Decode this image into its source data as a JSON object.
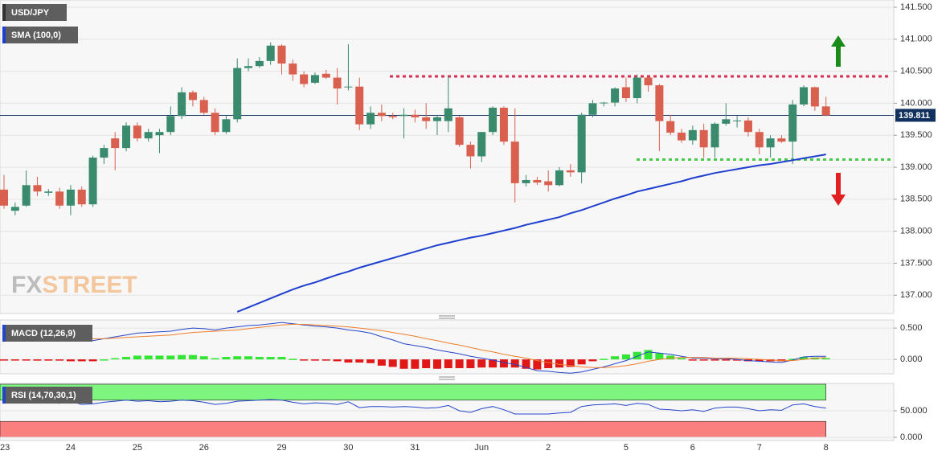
{
  "chart_data": [
    {
      "type": "candlestick",
      "title": "USD/JPY",
      "categories": [
        "23",
        null,
        null,
        null,
        null,
        null,
        "24",
        null,
        null,
        null,
        null,
        null,
        "25",
        null,
        null,
        null,
        null,
        null,
        "26",
        null,
        null,
        null,
        null,
        null,
        null,
        "29",
        null,
        null,
        null,
        null,
        null,
        "30",
        null,
        null,
        null,
        null,
        null,
        "31",
        null,
        null,
        null,
        null,
        null,
        "Jun",
        null,
        null,
        null,
        null,
        null,
        "2",
        null,
        null,
        null,
        null,
        null,
        null,
        "5",
        null,
        null,
        null,
        null,
        null,
        "6",
        null,
        null,
        null,
        null,
        null,
        "7",
        null,
        null,
        null,
        null,
        null,
        "8"
      ],
      "open": [
        138.65,
        138.32,
        138.4,
        138.72,
        138.6,
        138.62,
        138.4,
        138.65,
        138.42,
        139.15,
        139.45,
        139.3,
        139.65,
        139.45,
        139.5,
        139.55,
        139.8,
        140.17,
        140.05,
        139.85,
        139.55,
        139.75,
        140.55,
        140.58,
        140.66,
        140.9,
        140.62,
        140.45,
        140.32,
        140.46,
        140.4,
        140.25,
        140.26,
        139.67,
        139.85,
        139.8,
        139.8,
        139.82,
        139.78,
        139.72,
        139.72,
        139.78,
        139.35,
        139.17,
        139.55,
        139.93,
        139.4,
        138.75,
        138.8,
        138.78,
        138.72,
        138.95,
        138.92,
        139.82,
        140.0,
        140.01,
        140.25,
        140.08,
        140.4,
        140.28,
        139.72,
        139.54,
        139.42,
        139.58,
        139.31,
        139.68,
        139.72,
        139.73,
        139.55,
        139.31,
        139.45,
        139.4,
        139.98,
        140.25,
        139.95
      ],
      "high": [
        138.88,
        138.45,
        138.95,
        138.85,
        138.66,
        138.68,
        138.72,
        138.7,
        139.18,
        139.35,
        139.55,
        139.7,
        139.7,
        139.6,
        139.6,
        139.95,
        140.25,
        140.2,
        140.1,
        139.92,
        139.8,
        140.7,
        140.7,
        140.72,
        140.95,
        140.92,
        140.68,
        140.5,
        140.48,
        140.52,
        140.55,
        140.92,
        140.4,
        139.95,
        139.98,
        139.85,
        139.92,
        139.9,
        140.0,
        139.82,
        140.42,
        139.8,
        139.4,
        139.55,
        139.95,
        139.95,
        139.92,
        138.88,
        138.85,
        138.95,
        139.0,
        139.05,
        139.85,
        140.05,
        140.02,
        140.25,
        140.4,
        140.45,
        140.42,
        140.3,
        139.82,
        139.6,
        139.65,
        139.68,
        139.7,
        140.0,
        139.8,
        139.78,
        139.6,
        139.5,
        139.5,
        140.05,
        140.28,
        140.26,
        140.1
      ],
      "low": [
        138.35,
        138.25,
        138.38,
        138.55,
        138.55,
        138.35,
        138.25,
        138.38,
        138.38,
        139.05,
        138.95,
        139.25,
        139.4,
        139.4,
        139.22,
        139.5,
        139.75,
        139.95,
        139.82,
        139.5,
        139.52,
        139.7,
        140.5,
        140.55,
        140.6,
        140.45,
        140.35,
        140.25,
        140.3,
        140.38,
        139.98,
        140.2,
        139.58,
        139.6,
        139.72,
        139.75,
        139.45,
        139.7,
        139.6,
        139.5,
        139.55,
        139.32,
        138.98,
        139.08,
        139.5,
        139.35,
        138.45,
        138.7,
        138.72,
        138.62,
        138.7,
        138.85,
        138.75,
        139.78,
        139.95,
        139.95,
        140.02,
        140.0,
        140.18,
        139.25,
        139.5,
        139.38,
        139.35,
        139.15,
        139.15,
        139.65,
        139.62,
        139.48,
        139.2,
        139.15,
        139.38,
        139.05,
        139.95,
        139.88,
        139.8
      ],
      "close": [
        138.4,
        138.38,
        138.72,
        138.62,
        138.62,
        138.4,
        138.65,
        138.42,
        139.15,
        139.3,
        139.3,
        139.65,
        139.45,
        139.55,
        139.55,
        139.8,
        140.17,
        140.05,
        139.85,
        139.55,
        139.75,
        140.55,
        140.58,
        140.66,
        140.9,
        140.62,
        140.45,
        140.3,
        140.44,
        140.4,
        140.23,
        140.26,
        139.67,
        139.85,
        139.8,
        139.78,
        139.82,
        139.78,
        139.72,
        139.78,
        139.92,
        139.35,
        139.17,
        139.55,
        139.93,
        139.4,
        138.75,
        138.8,
        138.76,
        138.72,
        138.95,
        138.92,
        139.82,
        140.0,
        140.01,
        140.23,
        140.08,
        140.4,
        140.28,
        139.72,
        139.54,
        139.42,
        139.58,
        139.31,
        139.68,
        139.75,
        139.73,
        139.55,
        139.31,
        139.45,
        139.4,
        139.98,
        140.25,
        139.95,
        139.81
      ],
      "up_color": "#3a8a6e",
      "down_color": "#d9604f",
      "series": [
        {
          "name": "SMA (100,0)",
          "color": "#1f3fcf",
          "values": [
            null,
            null,
            null,
            null,
            null,
            null,
            null,
            null,
            null,
            null,
            null,
            null,
            null,
            null,
            null,
            null,
            null,
            null,
            null,
            null,
            null,
            136.74,
            136.81,
            136.88,
            136.95,
            137.02,
            137.09,
            137.15,
            137.2,
            137.26,
            137.32,
            137.37,
            137.43,
            137.48,
            137.53,
            137.58,
            137.63,
            137.68,
            137.73,
            137.78,
            137.82,
            137.86,
            137.9,
            137.93,
            137.97,
            138.01,
            138.05,
            138.1,
            138.14,
            138.18,
            138.22,
            138.28,
            138.33,
            138.39,
            138.45,
            138.51,
            138.56,
            138.62,
            138.66,
            138.7,
            138.74,
            138.78,
            138.83,
            138.87,
            138.91,
            138.94,
            138.97,
            139.0,
            139.03,
            139.05,
            139.08,
            139.11,
            139.14,
            139.17,
            139.2
          ]
        }
      ],
      "levels": [
        {
          "value": 140.42,
          "color": "#d6304e"
        },
        {
          "value": 139.12,
          "color": "#4cc84c"
        }
      ],
      "last_price": 139.811,
      "last_price_color": "#10305e",
      "watermark": [
        "FX",
        "STREET"
      ],
      "ylim": [
        136.714,
        141.613
      ],
      "yticks": [
        {
          "value": 137,
          "label": "137.000"
        },
        {
          "value": 137.5,
          "label": "137.500"
        },
        {
          "value": 138,
          "label": "138.000"
        },
        {
          "value": 138.5,
          "label": "138.500"
        },
        {
          "value": 139,
          "label": "139.000"
        },
        {
          "value": 139.5,
          "label": "139.500"
        },
        {
          "value": 140,
          "label": "140.000"
        },
        {
          "value": 140.5,
          "label": "140.500"
        },
        {
          "value": 141,
          "label": "141.000"
        },
        {
          "value": 141.5,
          "label": "141.500"
        }
      ],
      "grid": true
    },
    {
      "type": "macd",
      "title": "MACD (12,26,9)",
      "series": [
        {
          "color": "#2545c8",
          "values": [
            0.34,
            0.34,
            0.34,
            0.33,
            0.33,
            0.32,
            0.31,
            0.31,
            0.3,
            0.33,
            0.36,
            0.39,
            0.42,
            0.43,
            0.44,
            0.45,
            0.48,
            0.5,
            0.49,
            0.47,
            0.5,
            0.52,
            0.54,
            0.55,
            0.57,
            0.59,
            0.57,
            0.55,
            0.53,
            0.52,
            0.5,
            0.47,
            0.45,
            0.42,
            0.36,
            0.31,
            0.25,
            0.22,
            0.19,
            0.15,
            0.12,
            0.09,
            0.05,
            0.02,
            -0.01,
            -0.05,
            -0.08,
            -0.13,
            -0.18,
            -0.19,
            -0.21,
            -0.22,
            -0.2,
            -0.16,
            -0.12,
            -0.07,
            -0.02,
            0.05,
            0.12,
            0.1,
            0.08,
            0.05,
            0.02,
            0.02,
            0.01,
            0.01,
            0.0,
            -0.02,
            -0.03,
            -0.04,
            -0.05,
            -0.01,
            0.04,
            0.05,
            0.05
          ]
        },
        {
          "color": "#f07d2a",
          "values": [
            0.35,
            0.35,
            0.35,
            0.35,
            0.35,
            0.34,
            0.34,
            0.34,
            0.33,
            0.33,
            0.34,
            0.35,
            0.36,
            0.37,
            0.38,
            0.39,
            0.41,
            0.43,
            0.44,
            0.45,
            0.46,
            0.47,
            0.49,
            0.51,
            0.53,
            0.55,
            0.56,
            0.56,
            0.55,
            0.54,
            0.53,
            0.52,
            0.5,
            0.48,
            0.46,
            0.43,
            0.4,
            0.37,
            0.33,
            0.3,
            0.26,
            0.23,
            0.19,
            0.15,
            0.12,
            0.08,
            0.05,
            0.02,
            -0.02,
            -0.05,
            -0.08,
            -0.1,
            -0.12,
            -0.13,
            -0.13,
            -0.12,
            -0.1,
            -0.07,
            -0.03,
            0.0,
            0.02,
            0.03,
            0.03,
            0.03,
            0.02,
            0.02,
            0.02,
            0.01,
            0.0,
            -0.01,
            -0.02,
            -0.02,
            0.0,
            0.02,
            0.03
          ]
        }
      ],
      "histogram": {
        "up_color": "#33e633",
        "down_color": "#e01818",
        "values": [
          -0.01,
          -0.01,
          -0.01,
          -0.02,
          -0.02,
          -0.02,
          -0.03,
          -0.03,
          -0.03,
          0.0,
          0.02,
          0.04,
          0.06,
          0.06,
          0.06,
          0.06,
          0.07,
          0.07,
          0.05,
          0.02,
          0.04,
          0.05,
          0.05,
          0.04,
          0.04,
          0.04,
          0.01,
          -0.01,
          -0.02,
          -0.02,
          -0.03,
          -0.05,
          -0.05,
          -0.06,
          -0.1,
          -0.12,
          -0.15,
          -0.15,
          -0.14,
          -0.15,
          -0.14,
          -0.14,
          -0.14,
          -0.13,
          -0.13,
          -0.13,
          -0.13,
          -0.15,
          -0.16,
          -0.14,
          -0.13,
          -0.12,
          -0.08,
          -0.03,
          0.01,
          0.05,
          0.08,
          0.12,
          0.15,
          0.1,
          0.06,
          0.02,
          -0.01,
          -0.01,
          -0.01,
          -0.01,
          -0.02,
          -0.03,
          -0.03,
          -0.03,
          -0.03,
          0.01,
          0.04,
          0.03,
          0.02
        ]
      },
      "ylim": [
        -0.23,
        0.63
      ],
      "yticks": [
        {
          "value": 0,
          "label": "0.000"
        },
        {
          "value": 0.5,
          "label": "0.500"
        }
      ],
      "grid": true
    },
    {
      "type": "rsi",
      "title": "RSI (14,70,30,1)",
      "color": "#2545c8",
      "values": [
        65,
        66,
        68,
        69,
        67,
        64,
        68,
        62,
        63,
        66,
        68,
        70,
        68,
        69,
        67,
        68,
        70,
        69,
        66,
        62,
        64,
        68,
        69,
        70,
        71,
        70,
        66,
        63,
        65,
        64,
        62,
        67,
        56,
        58,
        58,
        57,
        58,
        57,
        55,
        56,
        60,
        50,
        47,
        54,
        58,
        52,
        44,
        44,
        44,
        44,
        46,
        47,
        58,
        61,
        62,
        63,
        60,
        64,
        62,
        53,
        52,
        50,
        52,
        49,
        55,
        57,
        57,
        54,
        50,
        52,
        51,
        61,
        63,
        58,
        55
      ],
      "bands": [
        {
          "from": 70,
          "to": 100,
          "color": "#7ef57e"
        },
        {
          "from": 0,
          "to": 30,
          "color": "#fa8080"
        }
      ],
      "ylim": [
        -6,
        101.5
      ],
      "yticks": [
        {
          "value": 0,
          "label": "0.000"
        },
        {
          "value": 50,
          "label": "50.000"
        }
      ],
      "grid": true
    }
  ]
}
